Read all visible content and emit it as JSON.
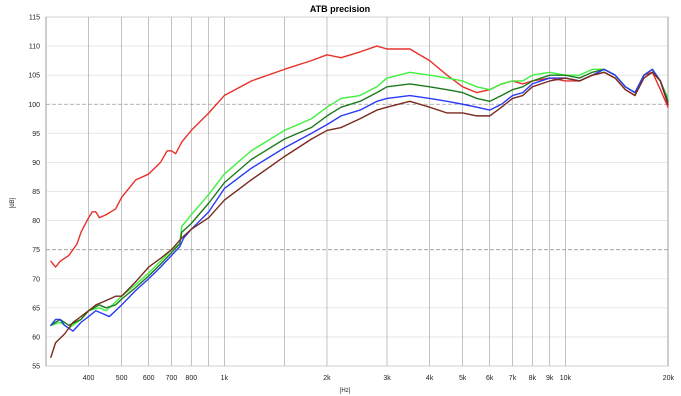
{
  "chart_data": {
    "type": "line",
    "title": "ATB precision",
    "xlabel": "[Hz]",
    "ylabel": "[dB]",
    "x_scale": "log",
    "xlim": [
      300,
      20000
    ],
    "ylim": [
      55,
      115
    ],
    "grid": true,
    "y_ticks": [
      55,
      60,
      65,
      70,
      75,
      80,
      85,
      90,
      95,
      100,
      105,
      110,
      115
    ],
    "y_tick_labels": [
      "55",
      "60",
      "65",
      "70",
      "75",
      "80",
      "85",
      "90",
      "95",
      "100",
      "105",
      "110",
      "115"
    ],
    "x_ticks": [
      400,
      500,
      600,
      700,
      800,
      1000,
      2000,
      3000,
      4000,
      5000,
      6000,
      7000,
      8000,
      9000,
      10000,
      20000
    ],
    "x_tick_labels": [
      "400",
      "500",
      "600",
      "700",
      "800",
      "1k",
      "2k",
      "3k",
      "4k",
      "5k",
      "6k",
      "7k",
      "8k",
      "9k",
      "10k",
      "20k"
    ],
    "minor_x_grid": [
      300,
      900,
      1500
    ],
    "dashed_y": [
      75,
      100
    ],
    "series": [
      {
        "color": "#e8302a",
        "x": [
          310,
          320,
          330,
          350,
          370,
          380,
          400,
          410,
          420,
          430,
          450,
          480,
          500,
          550,
          600,
          650,
          680,
          700,
          720,
          750,
          800,
          900,
          1000,
          1200,
          1500,
          1800,
          2000,
          2200,
          2500,
          2800,
          3000,
          3500,
          4000,
          4500,
          5000,
          5500,
          6000,
          6500,
          7000,
          7500,
          8000,
          9000,
          10000,
          11000,
          12000,
          13000,
          14000,
          15000,
          16000,
          17000,
          18000,
          19000,
          20000
        ],
        "y": [
          73,
          72,
          73,
          74,
          76,
          78,
          80.5,
          81.5,
          81.5,
          80.5,
          81,
          82,
          84,
          87,
          88,
          90,
          92,
          92,
          91.5,
          93.5,
          95.5,
          98.5,
          101.5,
          104,
          106,
          107.5,
          108.5,
          108,
          109,
          110,
          109.5,
          109.5,
          107.5,
          105,
          103,
          102,
          102.5,
          103.5,
          104,
          103.5,
          104,
          104.5,
          104,
          104,
          105,
          105.5,
          104.5,
          102.5,
          101.5,
          105,
          105.5,
          102.5,
          99.5
        ]
      },
      {
        "color": "#3df23d",
        "x": [
          310,
          330,
          350,
          380,
          400,
          430,
          450,
          480,
          500,
          550,
          600,
          650,
          700,
          740,
          750,
          800,
          900,
          1000,
          1200,
          1500,
          1800,
          2000,
          2200,
          2500,
          2800,
          3000,
          3500,
          4000,
          4500,
          5000,
          5500,
          6000,
          6500,
          7000,
          7500,
          8000,
          9000,
          10000,
          11000,
          12000,
          13000,
          14000,
          15000,
          16000,
          17000,
          18000,
          19000,
          20000
        ],
        "y": [
          62,
          62.5,
          61.5,
          63,
          64.5,
          65,
          64.5,
          66,
          67,
          69,
          71,
          73,
          75,
          76,
          79,
          81,
          84.5,
          88,
          92,
          95.5,
          97.5,
          99.5,
          101,
          101.5,
          103,
          104.5,
          105.5,
          105,
          104.5,
          104,
          103,
          102.5,
          103.5,
          104,
          104,
          105,
          105.5,
          105,
          105,
          106,
          106,
          105,
          103,
          102,
          105,
          106,
          104,
          101
        ]
      },
      {
        "color": "#1e7a1e",
        "x": [
          310,
          330,
          350,
          380,
          400,
          430,
          450,
          480,
          500,
          550,
          600,
          650,
          700,
          740,
          750,
          800,
          900,
          1000,
          1200,
          1500,
          1800,
          2000,
          2200,
          2500,
          2800,
          3000,
          3500,
          4000,
          4500,
          5000,
          5500,
          6000,
          6500,
          7000,
          7500,
          8000,
          9000,
          10000,
          11000,
          12000,
          13000,
          14000,
          15000,
          16000,
          17000,
          18000,
          19000,
          20000
        ],
        "y": [
          62,
          63,
          62,
          63,
          64.5,
          65.5,
          65,
          65.5,
          66.5,
          68.5,
          70.5,
          72.5,
          74.5,
          76,
          78,
          79.5,
          83,
          86.5,
          90.5,
          94,
          96,
          98,
          99.5,
          100.5,
          102,
          103,
          103.5,
          103,
          102.5,
          102,
          101,
          100.5,
          101.5,
          102.5,
          103,
          104,
          105,
          105,
          104.5,
          105.5,
          106,
          105,
          103,
          102,
          105,
          106,
          104,
          100.5
        ]
      },
      {
        "color": "#2a3af5",
        "x": [
          310,
          320,
          330,
          340,
          350,
          360,
          380,
          400,
          420,
          440,
          460,
          480,
          500,
          550,
          600,
          650,
          700,
          740,
          760,
          800,
          900,
          1000,
          1200,
          1500,
          1800,
          2000,
          2200,
          2500,
          2800,
          3000,
          3500,
          4000,
          4500,
          5000,
          5500,
          6000,
          6500,
          7000,
          7500,
          8000,
          9000,
          10000,
          11000,
          12000,
          13000,
          14000,
          15000,
          16000,
          17000,
          18000,
          19000,
          20000
        ],
        "y": [
          62,
          63,
          63,
          62,
          61.5,
          61,
          62.5,
          63.5,
          64.5,
          64,
          63.5,
          64.5,
          65.5,
          68,
          70,
          72,
          74,
          75.5,
          77,
          78.5,
          81.5,
          85.5,
          89,
          92.5,
          95,
          96.5,
          98,
          99,
          100.5,
          101,
          101.5,
          101,
          100.5,
          100,
          99.5,
          99,
          100,
          101.5,
          102,
          103.5,
          104.5,
          104.5,
          104,
          105,
          106,
          105,
          103,
          102,
          105,
          106,
          104,
          100
        ]
      },
      {
        "color": "#7a2a1e",
        "x": [
          310,
          320,
          340,
          360,
          380,
          400,
          420,
          440,
          460,
          480,
          500,
          550,
          600,
          650,
          700,
          750,
          800,
          900,
          1000,
          1200,
          1500,
          1800,
          2000,
          2200,
          2500,
          2800,
          3000,
          3500,
          4000,
          4500,
          5000,
          5500,
          6000,
          6500,
          7000,
          7500,
          8000,
          9000,
          10000,
          11000,
          12000,
          13000,
          14000,
          15000,
          16000,
          17000,
          18000,
          19000,
          20000
        ],
        "y": [
          56.5,
          59,
          60.5,
          62.5,
          63.5,
          64.5,
          65.5,
          66,
          66.5,
          67,
          67,
          69.5,
          72,
          73.5,
          75,
          77,
          78.5,
          80.5,
          83.5,
          87,
          91,
          94,
          95.5,
          96,
          97.5,
          99,
          99.5,
          100.5,
          99.5,
          98.5,
          98.5,
          98,
          98,
          99.5,
          101,
          101.5,
          103,
          104,
          104.5,
          104,
          105,
          105.5,
          104.5,
          102.5,
          101.5,
          104.5,
          105.5,
          104,
          100
        ]
      }
    ]
  }
}
